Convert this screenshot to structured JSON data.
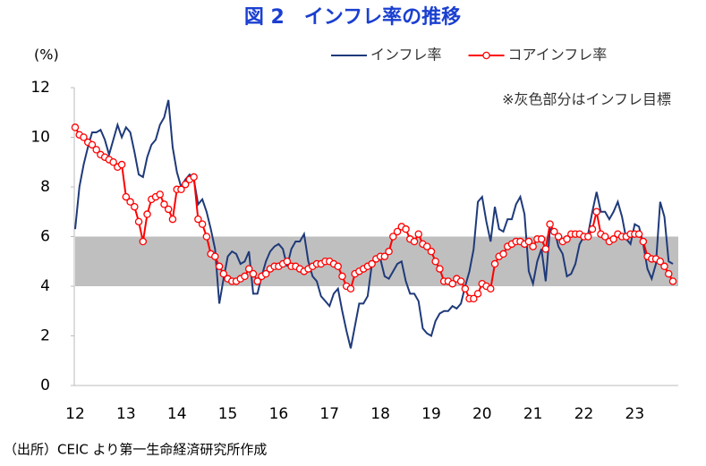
{
  "chart_data": {
    "type": "line",
    "title": "図 2　インフレ率の推移",
    "y_label": "(%)",
    "annotation": "※灰色部分はインフレ目標",
    "source": "（出所）CEIC より第一生命経済研究所作成",
    "target_band": [
      4,
      6
    ],
    "band_color": "#bfbfbf",
    "categories": [
      "12",
      null,
      null,
      null,
      null,
      null,
      null,
      null,
      null,
      null,
      null,
      null,
      "13",
      null,
      null,
      null,
      null,
      null,
      null,
      null,
      null,
      null,
      null,
      null,
      "14",
      null,
      null,
      null,
      null,
      null,
      null,
      null,
      null,
      null,
      null,
      null,
      "15",
      null,
      null,
      null,
      null,
      null,
      null,
      null,
      null,
      null,
      null,
      null,
      "16",
      null,
      null,
      null,
      null,
      null,
      null,
      null,
      null,
      null,
      null,
      null,
      "17",
      null,
      null,
      null,
      null,
      null,
      null,
      null,
      null,
      null,
      null,
      null,
      "18",
      null,
      null,
      null,
      null,
      null,
      null,
      null,
      null,
      null,
      null,
      null,
      "19",
      null,
      null,
      null,
      null,
      null,
      null,
      null,
      null,
      null,
      null,
      null,
      "20",
      null,
      null,
      null,
      null,
      null,
      null,
      null,
      null,
      null,
      null,
      null,
      "21",
      null,
      null,
      null,
      null,
      null,
      null,
      null,
      null,
      null,
      null,
      null,
      "22",
      null,
      null,
      null,
      null,
      null,
      null,
      null,
      null,
      null,
      null,
      null,
      "23",
      null,
      null,
      null,
      null,
      null,
      null,
      null,
      null,
      null
    ],
    "series": [
      {
        "name": "インフレ率",
        "color": "#1f3a7a",
        "marker": false,
        "values": [
          6.3,
          8.0,
          8.9,
          9.6,
          10.2,
          10.2,
          10.3,
          9.9,
          9.3,
          9.9,
          10.5,
          10.0,
          10.4,
          10.2,
          9.4,
          8.5,
          8.4,
          9.2,
          9.7,
          9.9,
          10.5,
          10.8,
          11.5,
          9.6,
          8.6,
          8.0,
          8.3,
          8.5,
          8.3,
          7.3,
          7.5,
          7.0,
          6.3,
          5.5,
          3.3,
          4.3,
          5.2,
          5.4,
          5.3,
          4.9,
          5.0,
          5.4,
          3.7,
          3.7,
          4.4,
          5.0,
          5.4,
          5.6,
          5.7,
          5.5,
          4.8,
          5.5,
          5.8,
          5.8,
          6.1,
          5.0,
          4.4,
          4.2,
          3.6,
          3.4,
          3.2,
          3.7,
          3.9,
          3.0,
          2.2,
          1.5,
          2.4,
          3.3,
          3.3,
          3.6,
          4.9,
          5.2,
          5.1,
          4.4,
          4.3,
          4.6,
          4.9,
          5.0,
          4.2,
          3.7,
          3.7,
          3.4,
          2.3,
          2.1,
          2.0,
          2.6,
          2.9,
          3.0,
          3.0,
          3.2,
          3.1,
          3.3,
          4.0,
          4.6,
          5.5,
          7.4,
          7.6,
          6.6,
          5.8,
          7.2,
          6.3,
          6.2,
          6.7,
          6.7,
          7.3,
          7.6,
          6.9,
          4.6,
          4.1,
          5.0,
          5.5,
          4.2,
          6.3,
          6.3,
          5.6,
          5.3,
          4.4,
          4.5,
          4.9,
          5.7,
          6.0,
          6.1,
          7.0,
          7.8,
          7.0,
          7.0,
          6.7,
          7.0,
          7.4,
          6.8,
          5.9,
          5.7,
          6.5,
          6.4,
          5.7,
          4.7,
          4.3,
          4.9,
          7.4,
          6.8,
          5.0,
          4.9
        ]
      },
      {
        "name": "コアインフレ率",
        "color": "#ff0000",
        "marker": true,
        "values": [
          10.4,
          10.1,
          10.0,
          9.8,
          9.7,
          9.5,
          9.3,
          9.2,
          9.1,
          9.0,
          8.8,
          8.9,
          7.6,
          7.4,
          7.2,
          6.6,
          5.8,
          6.9,
          7.5,
          7.6,
          7.7,
          7.3,
          7.1,
          6.7,
          7.9,
          7.9,
          8.1,
          8.3,
          8.4,
          6.7,
          6.5,
          6.0,
          5.3,
          5.2,
          4.8,
          4.5,
          4.3,
          4.2,
          4.2,
          4.3,
          4.4,
          4.7,
          4.5,
          4.2,
          4.4,
          4.5,
          4.7,
          4.8,
          4.8,
          4.9,
          5.0,
          4.8,
          4.8,
          4.7,
          4.6,
          4.7,
          4.8,
          4.9,
          4.9,
          5.0,
          5.0,
          4.9,
          4.8,
          4.4,
          4.0,
          3.9,
          4.5,
          4.6,
          4.7,
          4.8,
          4.9,
          5.1,
          5.2,
          5.2,
          5.4,
          6.0,
          6.2,
          6.4,
          6.3,
          5.9,
          5.8,
          6.1,
          5.7,
          5.6,
          5.4,
          5.0,
          4.7,
          4.2,
          4.2,
          4.1,
          4.3,
          4.2,
          3.9,
          3.5,
          3.5,
          3.7,
          4.1,
          4.0,
          3.9,
          4.9,
          5.2,
          5.3,
          5.6,
          5.7,
          5.8,
          5.8,
          5.7,
          5.8,
          5.6,
          5.9,
          5.9,
          5.5,
          6.5,
          6.2,
          6.0,
          5.8,
          5.9,
          6.1,
          6.1,
          6.1,
          6.0,
          6.0,
          6.3,
          7.0,
          6.1,
          6.0,
          5.8,
          5.9,
          6.1,
          6.0,
          6.0,
          6.1,
          6.1,
          6.1,
          5.8,
          5.2,
          5.1,
          5.1,
          5.0,
          4.8,
          4.5,
          4.2
        ]
      }
    ],
    "ylim": [
      0,
      12
    ],
    "yticks": [
      0,
      2,
      4,
      6,
      8,
      10,
      12
    ],
    "grid": false,
    "legend": "top-right"
  }
}
